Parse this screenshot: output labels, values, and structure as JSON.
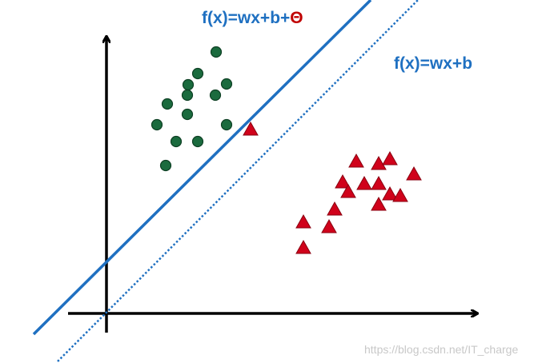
{
  "labels": {
    "shifted_line": "f(x)=wx+b+",
    "shift_symbol": "Θ",
    "base_line": "f(x)=wx+b"
  },
  "watermark": "https://blog.csdn.net/IT_charge"
}
